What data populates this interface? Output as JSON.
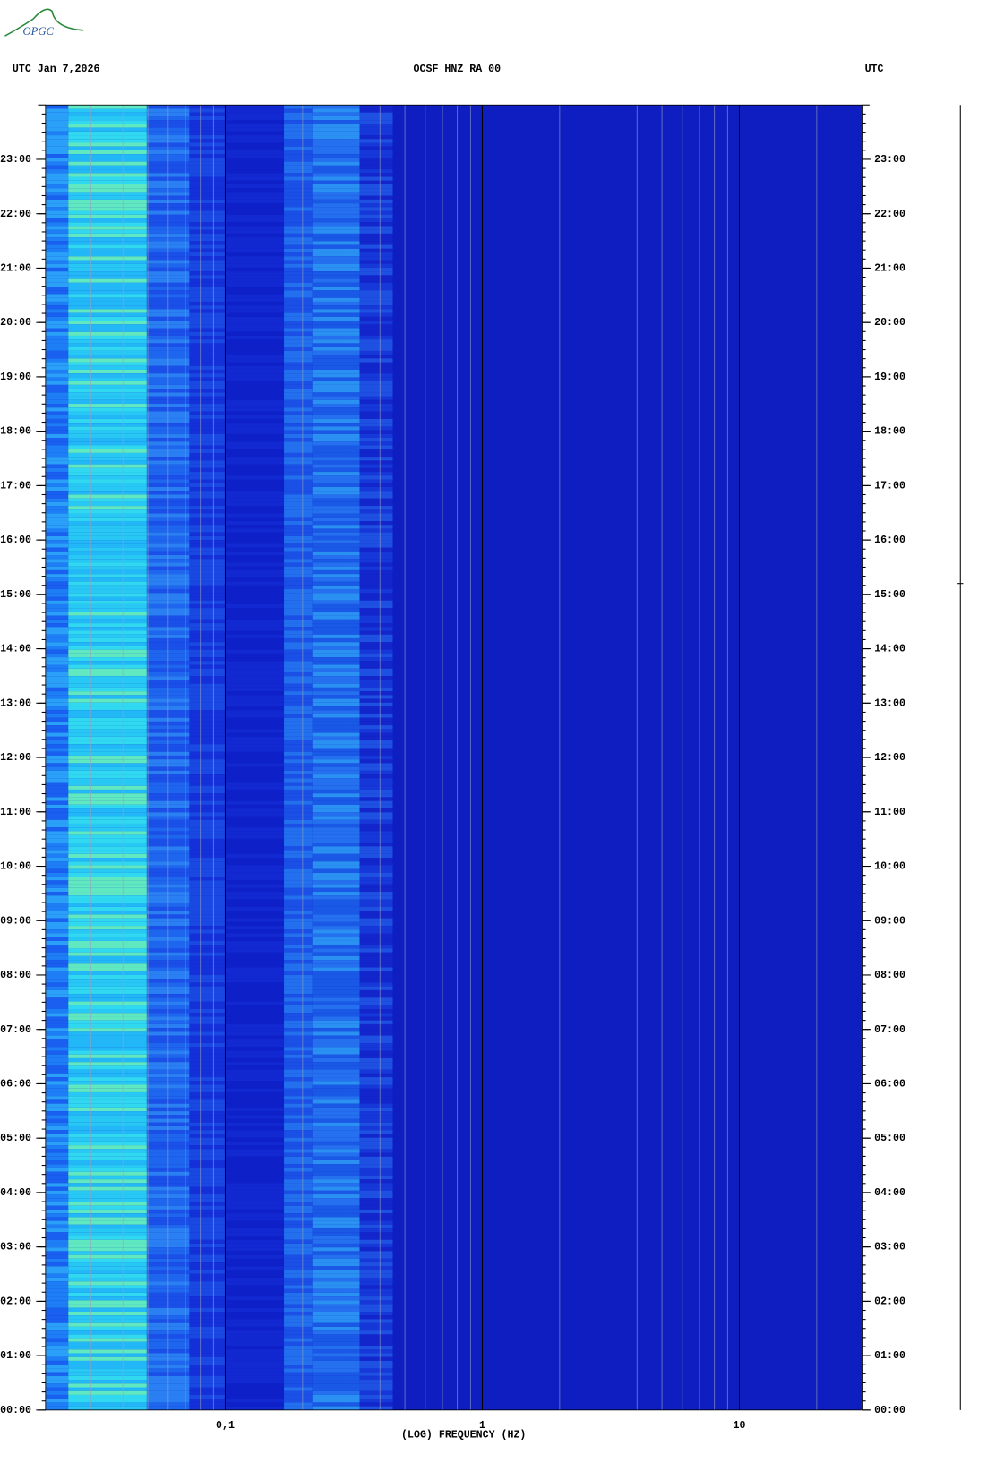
{
  "logo": "OPGC",
  "chart_data": {
    "type": "spectrogram",
    "title": "OCSF HNZ RA 00",
    "date_label": "UTC  Jan 7,2026",
    "right_label": "UTC",
    "x_label": "(LOG) FREQUENCY (HZ)",
    "x_log": true,
    "xlim": [
      0.02,
      30
    ],
    "xticks": [
      {
        "value": 0.1,
        "label": "0,1"
      },
      1,
      10
    ],
    "ylim": [
      0,
      24
    ],
    "yticks": [
      {
        "value": 0,
        "label": "00:00"
      },
      {
        "value": 1,
        "label": "01:00"
      },
      {
        "value": 2,
        "label": "02:00"
      },
      {
        "value": 3,
        "label": "03:00"
      },
      {
        "value": 4,
        "label": "04:00"
      },
      {
        "value": 5,
        "label": "05:00"
      },
      {
        "value": 6,
        "label": "06:00"
      },
      {
        "value": 7,
        "label": "07:00"
      },
      {
        "value": 8,
        "label": "08:00"
      },
      {
        "value": 9,
        "label": "09:00"
      },
      {
        "value": 10,
        "label": "10:00"
      },
      {
        "value": 11,
        "label": "11:00"
      },
      {
        "value": 12,
        "label": "12:00"
      },
      {
        "value": 13,
        "label": "13:00"
      },
      {
        "value": 14,
        "label": "14:00"
      },
      {
        "value": 15,
        "label": "15:00"
      },
      {
        "value": 16,
        "label": "16:00"
      },
      {
        "value": 17,
        "label": "17:00"
      },
      {
        "value": 18,
        "label": "18:00"
      },
      {
        "value": 19,
        "label": "19:00"
      },
      {
        "value": 20,
        "label": "20:00"
      },
      {
        "value": 21,
        "label": "21:00"
      },
      {
        "value": 22,
        "label": "22:00"
      },
      {
        "value": 23,
        "label": "23:00"
      }
    ]
  }
}
